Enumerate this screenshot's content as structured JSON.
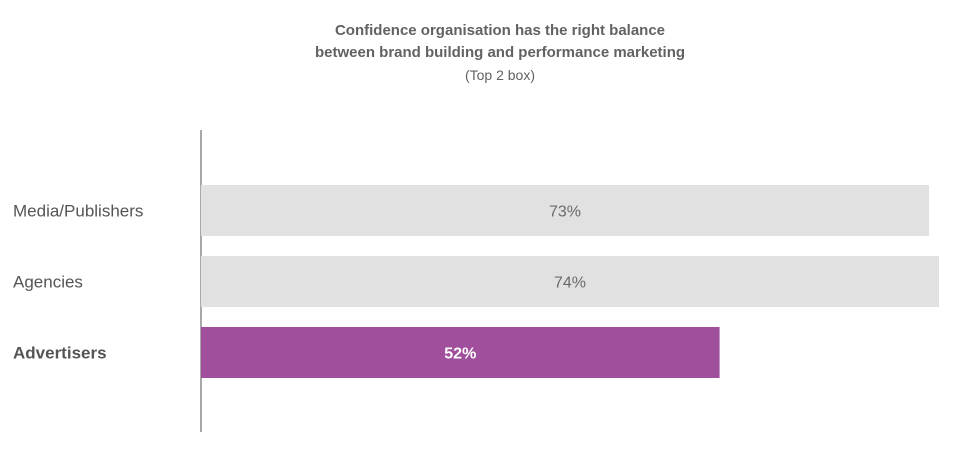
{
  "chart_data": {
    "type": "bar",
    "orientation": "horizontal",
    "title_lines": [
      "Confidence organisation has the right balance",
      "between brand building and performance marketing"
    ],
    "subtitle": "(Top 2 box)",
    "categories": [
      "Media/Publishers",
      "Agencies",
      "Advertisers"
    ],
    "values": [
      73,
      74,
      52
    ],
    "value_labels": [
      "73%",
      "74%",
      "52%"
    ],
    "highlight": [
      false,
      false,
      true
    ],
    "xlim": [
      0,
      74
    ],
    "grid": false,
    "legend": "none",
    "colors": {
      "default": "#e1e1e1",
      "highlight": "#a04f9c",
      "axis": "#8c8c8c"
    }
  }
}
